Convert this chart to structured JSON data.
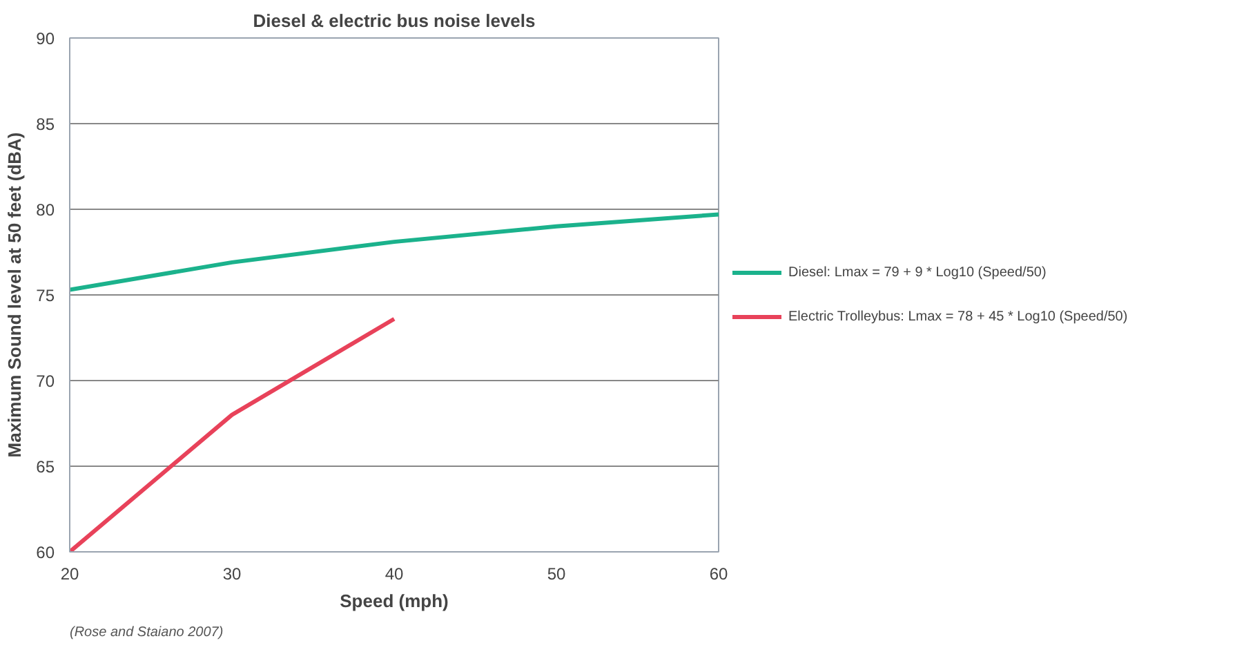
{
  "chart_data": {
    "type": "line",
    "title": "Diesel & electric bus noise levels",
    "xlabel": "Speed (mph)",
    "ylabel": "Maximum Sound level at 50 feet (dBA)",
    "x": [
      20,
      30,
      40,
      50,
      60
    ],
    "series": [
      {
        "name": "Diesel: Lmax = 79 + 9 * Log10 (Speed/50)",
        "color": "#1bb28c",
        "values": [
          75.3,
          76.9,
          78.1,
          79.0,
          79.7
        ]
      },
      {
        "name": "Electric Trolleybus: Lmax = 78 + 45 * Log10 (Speed/50)",
        "color": "#e8425a",
        "values": [
          60.0,
          68.0,
          73.6,
          null,
          null
        ]
      }
    ],
    "xlim": [
      20,
      60
    ],
    "xticks": [
      20,
      30,
      40,
      50,
      60
    ],
    "ylim": [
      60,
      90
    ],
    "yticks": [
      60,
      65,
      70,
      75,
      80,
      85,
      90
    ],
    "grid": "y",
    "legend": "right",
    "marker": "none",
    "line_style": "solid",
    "annotations": [
      "(Rose and Staiano 2007)"
    ]
  }
}
